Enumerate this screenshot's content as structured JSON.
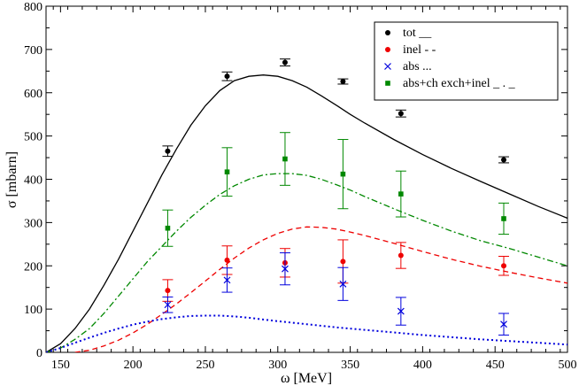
{
  "chart_data": {
    "type": "scatter",
    "title": "",
    "xlabel": "ω  [MeV]",
    "ylabel": "σ [mbarn]",
    "xlim": [
      140,
      500
    ],
    "ylim": [
      0,
      800
    ],
    "xticks": [
      150,
      200,
      250,
      300,
      350,
      400,
      450,
      500
    ],
    "yticks": [
      0,
      100,
      200,
      300,
      400,
      500,
      600,
      700,
      800
    ],
    "legend_position": "top-right",
    "series": [
      {
        "name": "tot",
        "legend_label": "tot  __",
        "color": "#000000",
        "marker": "dot",
        "x": [
          224,
          265,
          305,
          345,
          385,
          456
        ],
        "y": [
          465,
          638,
          670,
          626,
          552,
          445
        ],
        "err": [
          12,
          10,
          8,
          6,
          8,
          7
        ]
      },
      {
        "name": "inel",
        "legend_label": "inel  - -",
        "color": "#ee0000",
        "marker": "dot",
        "x": [
          224,
          265,
          305,
          345,
          385,
          456
        ],
        "y": [
          143,
          213,
          207,
          210,
          224,
          200
        ],
        "err": [
          25,
          33,
          33,
          50,
          30,
          22
        ]
      },
      {
        "name": "abs",
        "legend_label": "abs  ...",
        "color": "#0000dd",
        "marker": "x",
        "x": [
          224,
          265,
          305,
          345,
          385,
          456
        ],
        "y": [
          110,
          167,
          193,
          158,
          95,
          65
        ],
        "err": [
          18,
          28,
          37,
          38,
          32,
          25
        ]
      },
      {
        "name": "abs+ch exch+inel",
        "legend_label": "abs+ch exch+inel  _ . _",
        "color": "#008800",
        "marker": "square",
        "x": [
          224,
          265,
          305,
          345,
          385,
          456
        ],
        "y": [
          287,
          417,
          447,
          412,
          366,
          309
        ],
        "err": [
          42,
          56,
          61,
          80,
          53,
          36
        ]
      }
    ],
    "curves": [
      {
        "name": "tot",
        "style": "solid",
        "color": "#000000",
        "x": [
          140,
          150,
          160,
          170,
          180,
          190,
          200,
          210,
          220,
          230,
          240,
          250,
          260,
          270,
          280,
          290,
          300,
          310,
          320,
          330,
          340,
          350,
          360,
          380,
          400,
          420,
          440,
          460,
          480,
          500
        ],
        "y": [
          0,
          20,
          55,
          100,
          155,
          215,
          280,
          345,
          410,
          470,
          525,
          570,
          605,
          628,
          638,
          641,
          638,
          628,
          613,
          593,
          572,
          550,
          530,
          492,
          457,
          425,
          395,
          366,
          337,
          310
        ]
      },
      {
        "name": "abs+ch exch+inel",
        "style": "dashdot",
        "color": "#008800",
        "x": [
          140,
          150,
          160,
          170,
          180,
          190,
          200,
          210,
          220,
          230,
          240,
          250,
          260,
          270,
          280,
          290,
          300,
          310,
          320,
          330,
          340,
          350,
          360,
          380,
          400,
          420,
          440,
          460,
          480,
          500
        ],
        "y": [
          0,
          10,
          30,
          55,
          90,
          130,
          170,
          210,
          245,
          280,
          312,
          340,
          365,
          385,
          400,
          410,
          413,
          413,
          409,
          400,
          388,
          375,
          360,
          332,
          305,
          280,
          258,
          240,
          220,
          200
        ]
      },
      {
        "name": "inel",
        "style": "dashed",
        "color": "#ee0000",
        "x": [
          160,
          170,
          180,
          190,
          200,
          210,
          220,
          230,
          240,
          250,
          260,
          270,
          280,
          290,
          300,
          310,
          320,
          330,
          340,
          350,
          360,
          380,
          400,
          420,
          440,
          460,
          480,
          500
        ],
        "y": [
          0,
          5,
          15,
          28,
          45,
          65,
          88,
          112,
          138,
          165,
          192,
          218,
          241,
          260,
          275,
          285,
          290,
          289,
          285,
          278,
          270,
          252,
          233,
          215,
          199,
          185,
          172,
          160
        ]
      },
      {
        "name": "abs",
        "style": "dotted",
        "color": "#0000dd",
        "x": [
          140,
          150,
          160,
          170,
          180,
          190,
          200,
          210,
          220,
          230,
          240,
          250,
          260,
          270,
          280,
          290,
          300,
          320,
          340,
          360,
          380,
          400,
          420,
          440,
          460,
          480,
          500
        ],
        "y": [
          0,
          10,
          22,
          34,
          45,
          55,
          64,
          71,
          77,
          81,
          84,
          85,
          85,
          83,
          80,
          76,
          72,
          65,
          58,
          52,
          46,
          40,
          35,
          30,
          26,
          22,
          18
        ]
      }
    ]
  }
}
